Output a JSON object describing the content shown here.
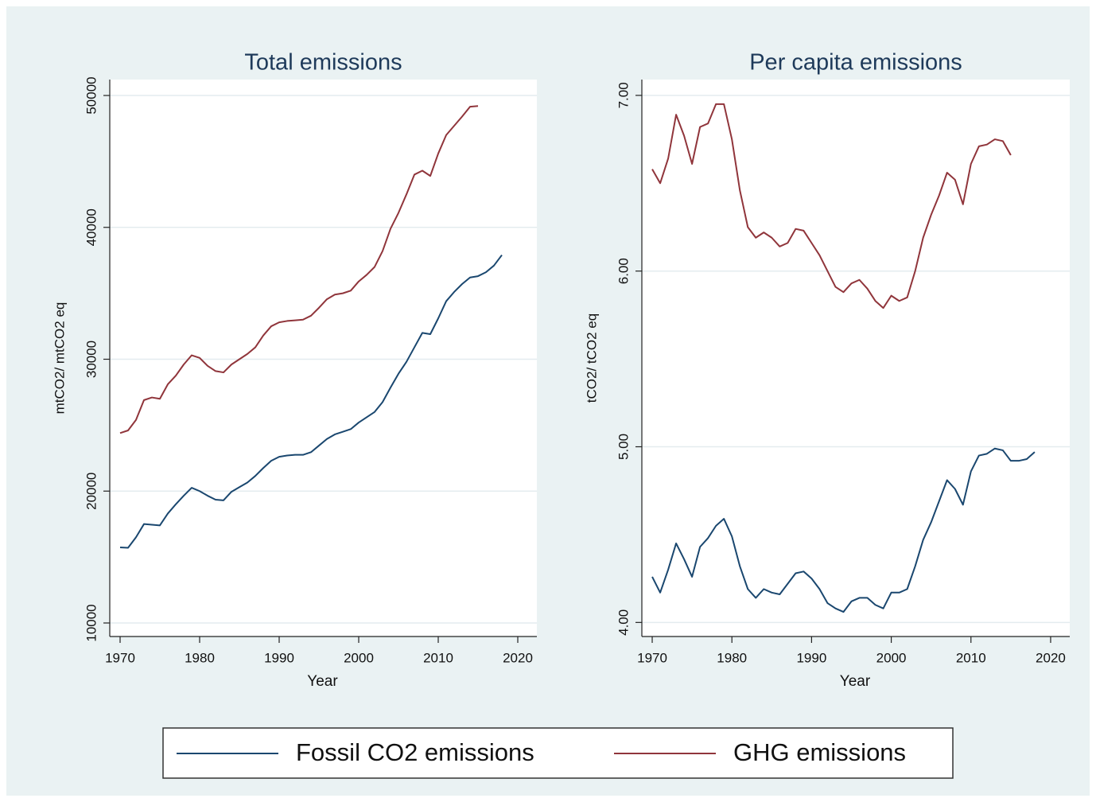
{
  "chart_data": [
    {
      "type": "line",
      "title": "Total emissions",
      "xlabel": "Year",
      "ylabel": "mtCO2/ mtCO2 eq",
      "x": [
        1970,
        1971,
        1972,
        1973,
        1974,
        1975,
        1976,
        1977,
        1978,
        1979,
        1980,
        1981,
        1982,
        1983,
        1984,
        1985,
        1986,
        1987,
        1988,
        1989,
        1990,
        1991,
        1992,
        1993,
        1994,
        1995,
        1996,
        1997,
        1998,
        1999,
        2000,
        2001,
        2002,
        2003,
        2004,
        2005,
        2006,
        2007,
        2008,
        2009,
        2010,
        2011,
        2012,
        2013,
        2014,
        2015,
        2016,
        2017,
        2018
      ],
      "series": [
        {
          "name": "Fossil CO2 emissions",
          "color": "#1a476f",
          "values": [
            15730,
            15700,
            16500,
            17500,
            17450,
            17400,
            18300,
            19000,
            19650,
            20250,
            20000,
            19650,
            19350,
            19300,
            19950,
            20300,
            20650,
            21150,
            21750,
            22300,
            22600,
            22700,
            22750,
            22750,
            22950,
            23450,
            23950,
            24300,
            24500,
            24700,
            25200,
            25600,
            26000,
            26750,
            27850,
            28900,
            29800,
            30900,
            32000,
            31900,
            33100,
            34400,
            35100,
            35700,
            36200,
            36300,
            36600,
            37100,
            37900
          ]
        },
        {
          "name": "GHG emissions",
          "color": "#90353b",
          "values": [
            24400,
            24600,
            25400,
            26900,
            27100,
            27000,
            28100,
            28750,
            29600,
            30300,
            30100,
            29500,
            29100,
            29000,
            29600,
            30000,
            30400,
            30900,
            31800,
            32500,
            32800,
            32900,
            32950,
            33000,
            33300,
            33900,
            34550,
            34900,
            35000,
            35200,
            35900,
            36400,
            37000,
            38200,
            39900,
            41100,
            42500,
            44000,
            44300,
            43900,
            45600,
            47000,
            47700,
            48400,
            49150,
            49200,
            null,
            null,
            null
          ]
        }
      ],
      "xlim": [
        1968.7,
        2022.4
      ],
      "xticks": [
        1970,
        1980,
        1990,
        2000,
        2010,
        2020
      ],
      "ylim": [
        8974,
        51207
      ],
      "yticks": [
        10000,
        20000,
        30000,
        40000,
        50000
      ],
      "grid": true
    },
    {
      "type": "line",
      "title": "Per capita emissions",
      "xlabel": "Year",
      "ylabel": "tCO2/ tCO2 eq",
      "x": [
        1970,
        1971,
        1972,
        1973,
        1974,
        1975,
        1976,
        1977,
        1978,
        1979,
        1980,
        1981,
        1982,
        1983,
        1984,
        1985,
        1986,
        1987,
        1988,
        1989,
        1990,
        1991,
        1992,
        1993,
        1994,
        1995,
        1996,
        1997,
        1998,
        1999,
        2000,
        2001,
        2002,
        2003,
        2004,
        2005,
        2006,
        2007,
        2008,
        2009,
        2010,
        2011,
        2012,
        2013,
        2014,
        2015,
        2016,
        2017,
        2018
      ],
      "series": [
        {
          "color": "#1a476f",
          "values": [
            4.26,
            4.17,
            4.3,
            4.45,
            4.36,
            4.26,
            4.43,
            4.48,
            4.55,
            4.59,
            4.49,
            4.32,
            4.19,
            4.14,
            4.19,
            4.17,
            4.16,
            4.22,
            4.28,
            4.29,
            4.25,
            4.19,
            4.11,
            4.08,
            4.06,
            4.12,
            4.14,
            4.14,
            4.1,
            4.08,
            4.17,
            4.17,
            4.19,
            4.32,
            4.47,
            4.57,
            4.69,
            4.81,
            4.76,
            4.67,
            4.86,
            4.95,
            4.96,
            4.99,
            4.98,
            4.92,
            4.92,
            4.93,
            4.97
          ]
        },
        {
          "color": "#90353b",
          "values": [
            6.58,
            6.5,
            6.64,
            6.89,
            6.77,
            6.61,
            6.82,
            6.84,
            6.95,
            6.95,
            6.75,
            6.46,
            6.25,
            6.19,
            6.22,
            6.19,
            6.14,
            6.16,
            6.24,
            6.23,
            6.16,
            6.09,
            6.0,
            5.91,
            5.88,
            5.93,
            5.95,
            5.9,
            5.83,
            5.79,
            5.86,
            5.83,
            5.85,
            6.0,
            6.19,
            6.32,
            6.43,
            6.56,
            6.52,
            6.38,
            6.61,
            6.71,
            6.72,
            6.75,
            6.74,
            6.66,
            null,
            null,
            null
          ]
        }
      ],
      "xlim": [
        1968.7,
        2022.4
      ],
      "xticks": [
        1970,
        1980,
        1990,
        2000,
        2010,
        2020
      ],
      "ylim": [
        3.92,
        7.09
      ],
      "yticks": [
        {
          "value": 4,
          "label": "4.00"
        },
        {
          "value": 5,
          "label": "5.00"
        },
        {
          "value": 6,
          "label": "6.00"
        },
        {
          "value": 7,
          "label": "7.00"
        }
      ],
      "grid": true
    }
  ]
}
